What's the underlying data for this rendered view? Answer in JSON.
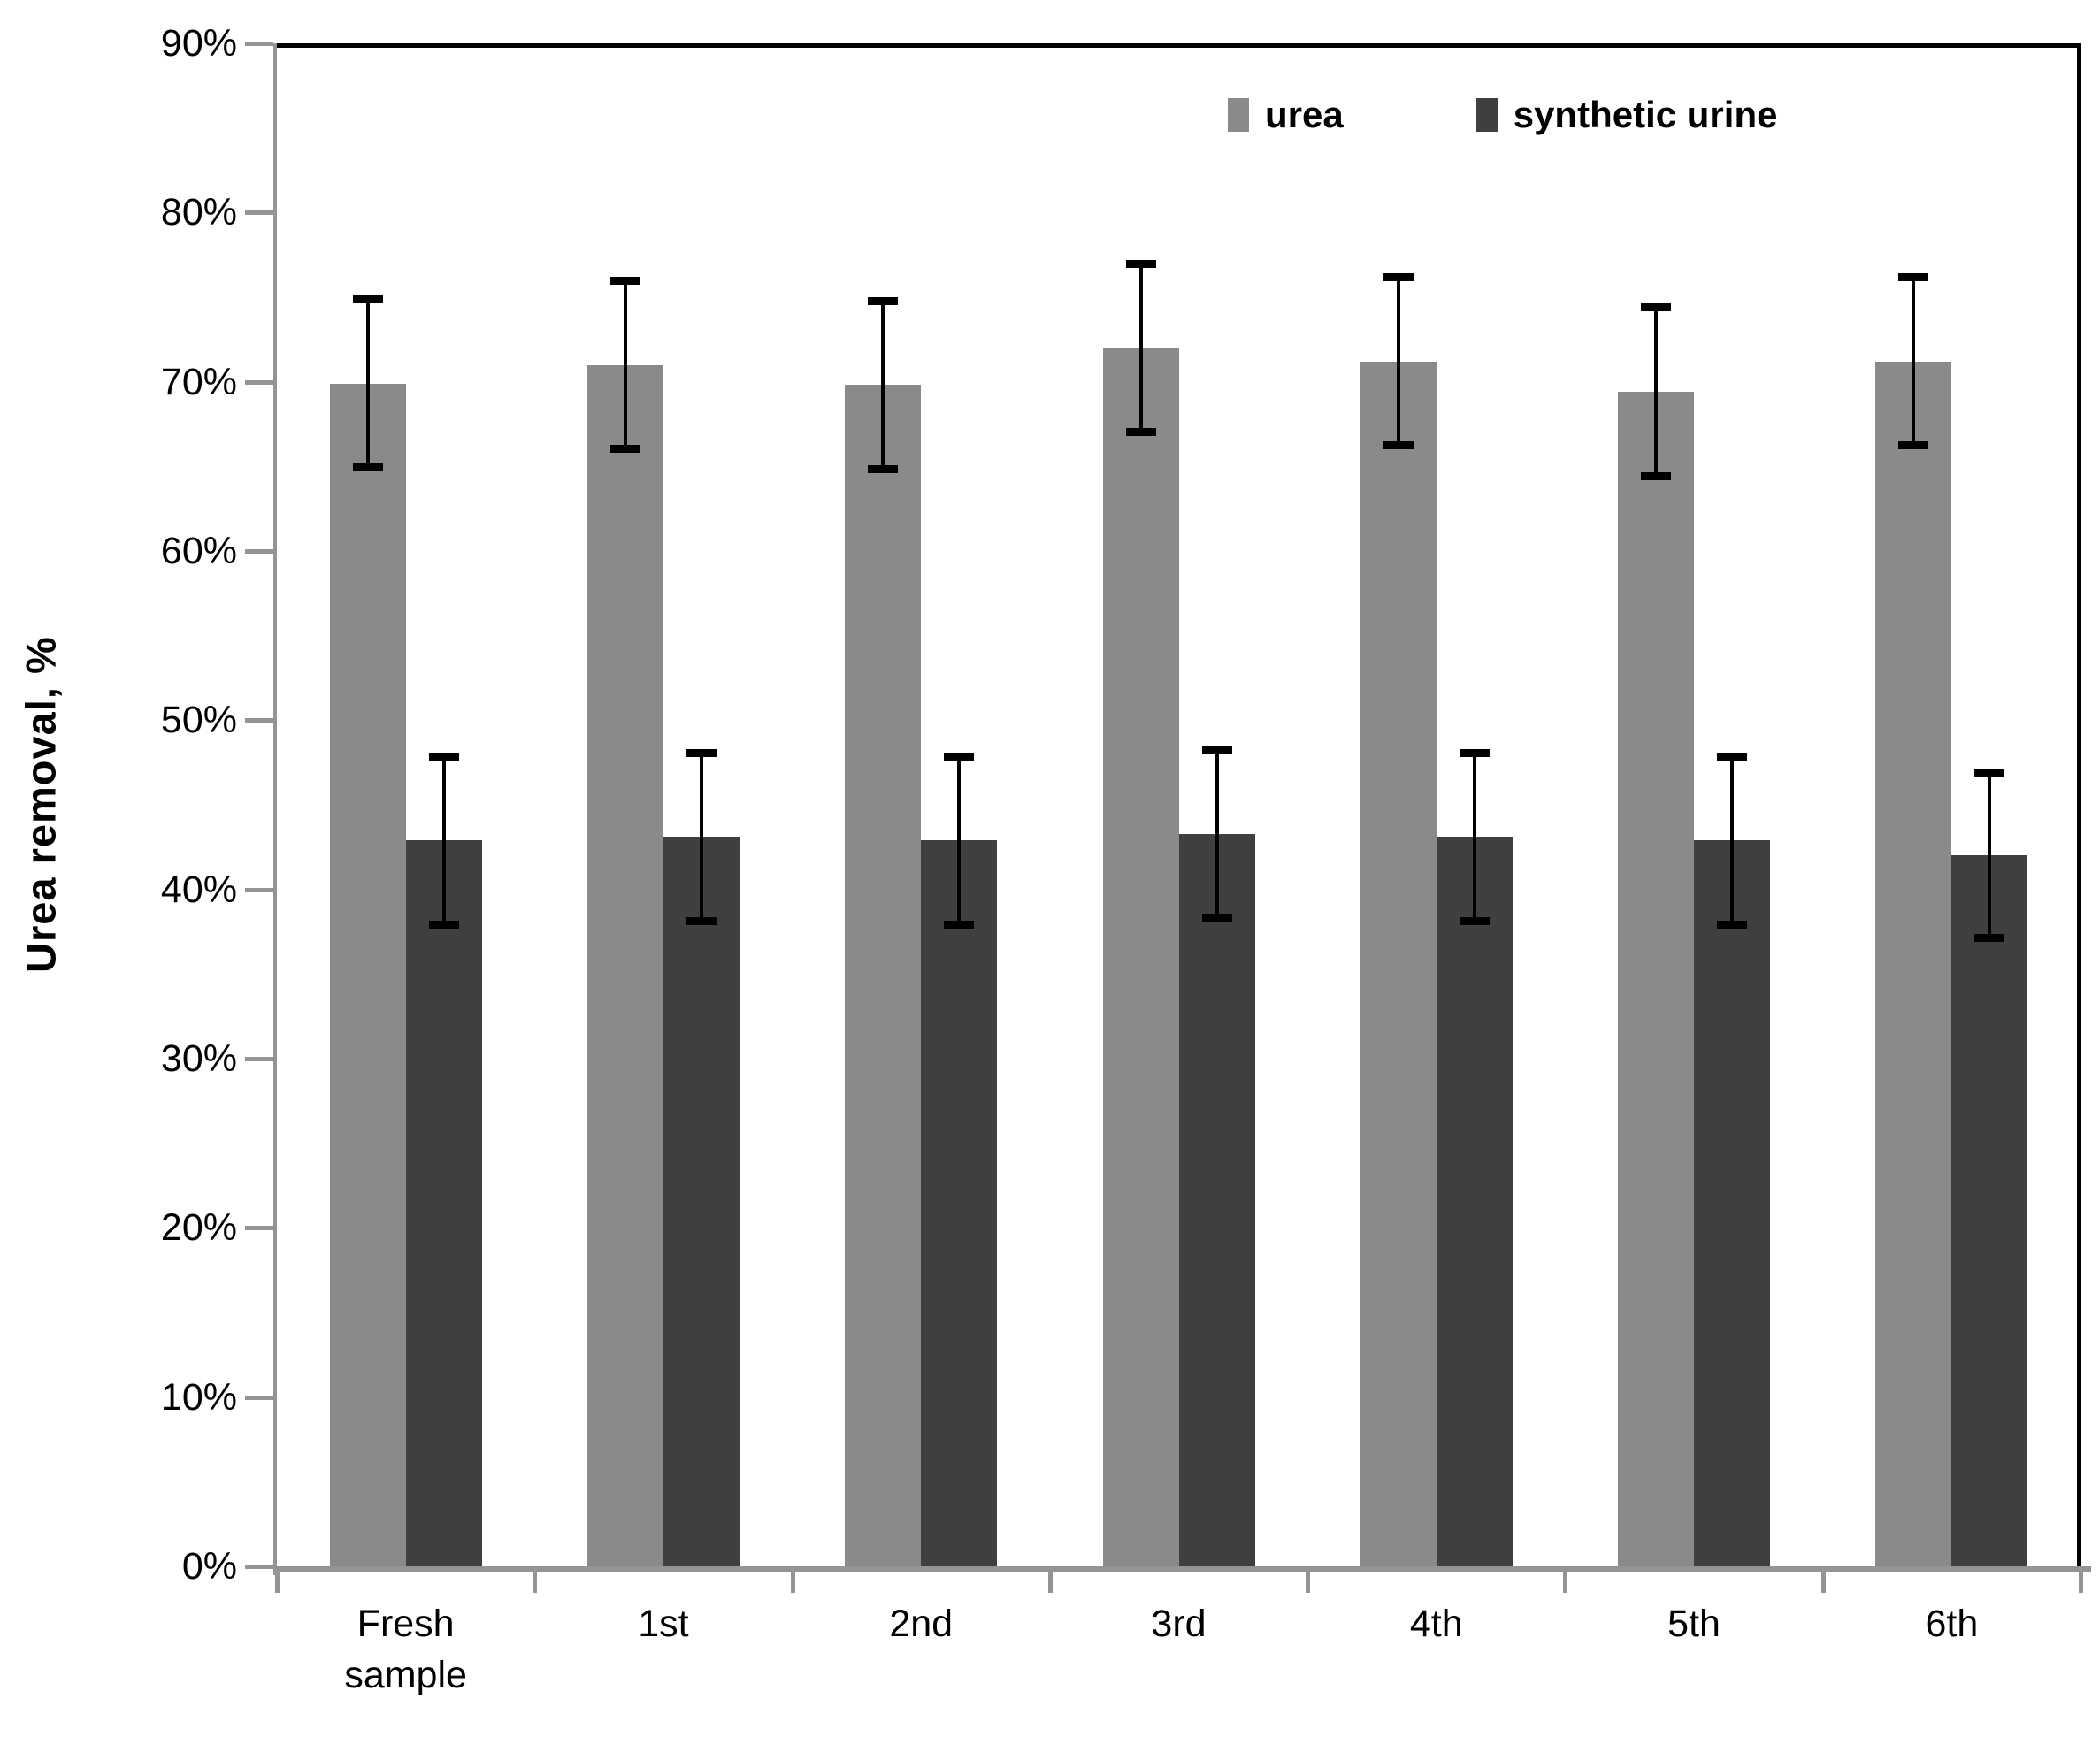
{
  "chart_data": {
    "type": "bar",
    "title": "",
    "xlabel": "",
    "ylabel": "Urea removal, %",
    "ylim": [
      0,
      90
    ],
    "ytick_step": 10,
    "ytick_labels": [
      "0%",
      "10%",
      "20%",
      "30%",
      "40%",
      "50%",
      "60%",
      "70%",
      "80%",
      "90%"
    ],
    "grid": false,
    "legend_position": "inside-top-right",
    "categories": [
      "Fresh\nsample",
      "1st",
      "2nd",
      "3rd",
      "4th",
      "5th",
      "6th"
    ],
    "series": [
      {
        "name": "urea",
        "color": "#8a8a8a",
        "values": [
          69.9,
          71.0,
          69.8,
          72.0,
          71.2,
          69.4,
          71.2
        ],
        "errors": [
          5.0,
          5.0,
          5.0,
          5.0,
          5.0,
          5.0,
          5.0
        ]
      },
      {
        "name": "synthetic urine",
        "color": "#3f3f3f",
        "values": [
          42.9,
          43.1,
          42.9,
          43.3,
          43.1,
          42.9,
          42.0
        ],
        "errors": [
          5.0,
          5.0,
          5.0,
          5.0,
          5.0,
          5.0,
          4.9
        ]
      }
    ],
    "colors": {
      "axis": "#949494",
      "plot_border": "#000000",
      "error_bar": "#000000",
      "background": "#ffffff",
      "text": "#000000"
    }
  }
}
